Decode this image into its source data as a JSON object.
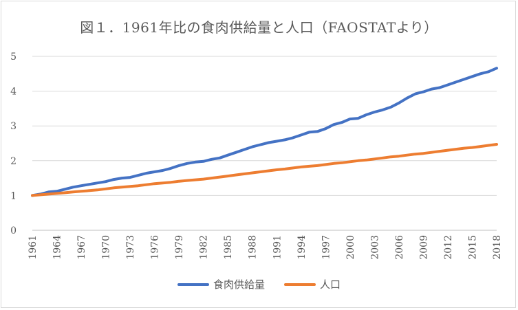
{
  "chart_data": {
    "type": "line",
    "title": "図１．1961年比の食肉供給量と人口（FAOSTATより）",
    "ylim": [
      0,
      5
    ],
    "yticks": [
      0,
      1,
      2,
      3,
      4,
      5
    ],
    "x": [
      1961,
      1962,
      1963,
      1964,
      1965,
      1966,
      1967,
      1968,
      1969,
      1970,
      1971,
      1972,
      1973,
      1974,
      1975,
      1976,
      1977,
      1978,
      1979,
      1980,
      1981,
      1982,
      1983,
      1984,
      1985,
      1986,
      1987,
      1988,
      1989,
      1990,
      1991,
      1992,
      1993,
      1994,
      1995,
      1996,
      1997,
      1998,
      1999,
      2000,
      2001,
      2002,
      2003,
      2004,
      2005,
      2006,
      2007,
      2008,
      2009,
      2010,
      2011,
      2012,
      2013,
      2014,
      2015,
      2016,
      2017,
      2018
    ],
    "xticks": [
      "1961",
      "1964",
      "1967",
      "1970",
      "1973",
      "1976",
      "1979",
      "1982",
      "1985",
      "1988",
      "1991",
      "1994",
      "1997",
      "2000",
      "2003",
      "2006",
      "2009",
      "2012",
      "2015",
      "2018"
    ],
    "grid": true,
    "legend_position": "bottom",
    "series": [
      {
        "name": "食肉供給量",
        "color": "#4472c4",
        "values": [
          1.0,
          1.04,
          1.1,
          1.12,
          1.18,
          1.24,
          1.28,
          1.32,
          1.36,
          1.4,
          1.46,
          1.5,
          1.52,
          1.58,
          1.64,
          1.68,
          1.72,
          1.78,
          1.86,
          1.92,
          1.96,
          1.98,
          2.04,
          2.08,
          2.16,
          2.24,
          2.32,
          2.4,
          2.46,
          2.52,
          2.56,
          2.6,
          2.66,
          2.74,
          2.82,
          2.84,
          2.92,
          3.04,
          3.1,
          3.2,
          3.22,
          3.32,
          3.4,
          3.46,
          3.54,
          3.66,
          3.8,
          3.92,
          3.98,
          4.06,
          4.1,
          4.18,
          4.26,
          4.34,
          4.42,
          4.5,
          4.56,
          4.66
        ]
      },
      {
        "name": "人口",
        "color": "#ed7d31",
        "values": [
          1.0,
          1.02,
          1.04,
          1.06,
          1.08,
          1.1,
          1.12,
          1.14,
          1.16,
          1.19,
          1.22,
          1.24,
          1.26,
          1.28,
          1.31,
          1.34,
          1.36,
          1.38,
          1.41,
          1.43,
          1.45,
          1.47,
          1.5,
          1.53,
          1.56,
          1.59,
          1.62,
          1.65,
          1.68,
          1.71,
          1.74,
          1.76,
          1.79,
          1.82,
          1.84,
          1.86,
          1.89,
          1.92,
          1.94,
          1.97,
          2.0,
          2.02,
          2.05,
          2.08,
          2.11,
          2.13,
          2.16,
          2.19,
          2.21,
          2.24,
          2.27,
          2.3,
          2.33,
          2.36,
          2.38,
          2.41,
          2.44,
          2.47
        ]
      }
    ]
  }
}
